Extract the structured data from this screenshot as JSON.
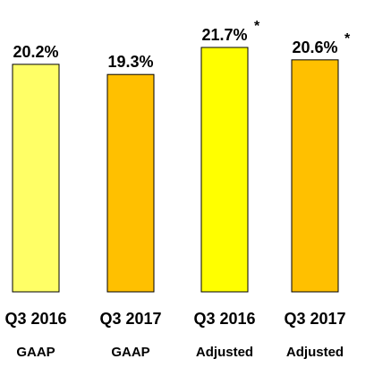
{
  "chart_data": {
    "type": "bar",
    "categories": [
      "Q3 2016",
      "Q3 2017",
      "Q3 2016",
      "Q3 2017"
    ],
    "sublabels": [
      "GAAP",
      "GAAP",
      "Adjusted",
      "Adjusted"
    ],
    "values": [
      20.2,
      19.3,
      21.7,
      20.6
    ],
    "value_labels": [
      "20.2%",
      "19.3%",
      "21.7%",
      "20.6%"
    ],
    "annotations": [
      "",
      "",
      "*",
      "*"
    ],
    "colors": [
      "#FFFF66",
      "#FFC000",
      "#FFFF00",
      "#FFC000"
    ],
    "bar_edge_color": "#000000",
    "title": "",
    "xlabel": "",
    "ylabel": "",
    "ylim": [
      0,
      21.7
    ],
    "grid": false,
    "legend": "none"
  }
}
